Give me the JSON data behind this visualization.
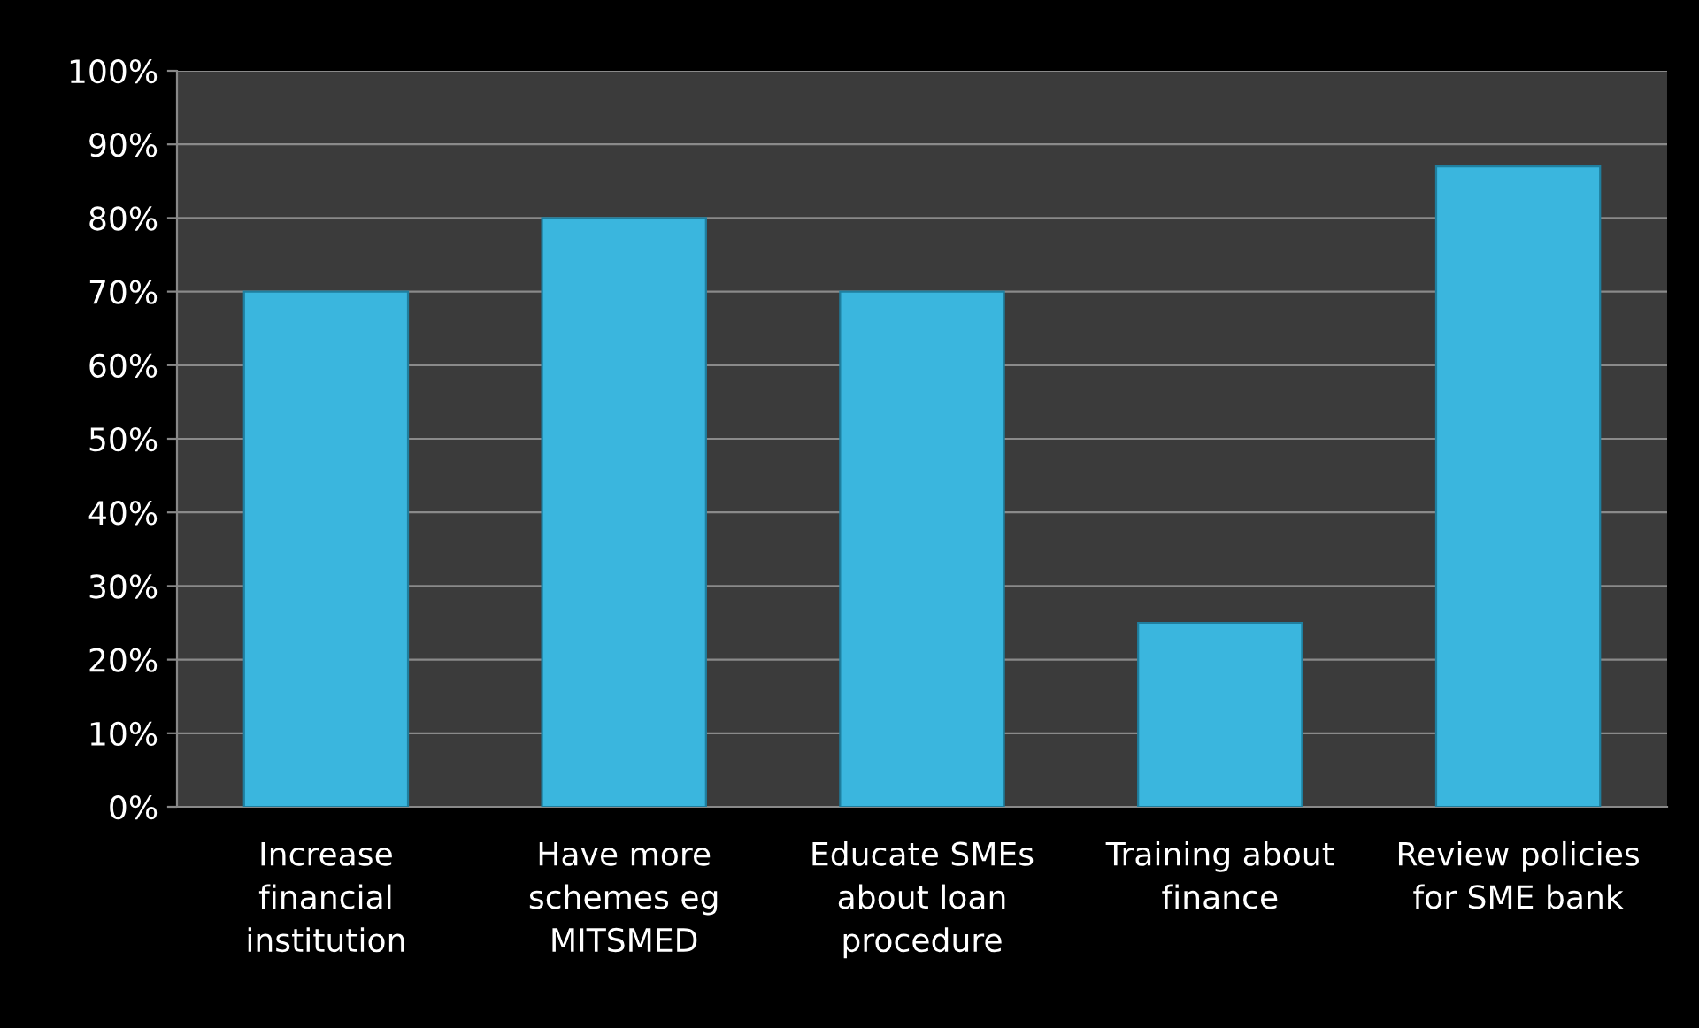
{
  "chart_data": {
    "type": "bar",
    "categories": [
      "Increase\nfinancial\ninstitution",
      "Have more\nschemes eg\nMITSMED",
      "Educate SMEs\nabout loan\nprocedure",
      "Training about\nfinance",
      "Review policies\nfor SME bank"
    ],
    "values": [
      70,
      80,
      70,
      25,
      87
    ],
    "color": "#3ab6de",
    "ylim": [
      0,
      100
    ],
    "yticks": [
      {
        "value": 0,
        "label": "0%"
      },
      {
        "value": 10,
        "label": "10%"
      },
      {
        "value": 20,
        "label": "20%"
      },
      {
        "value": 30,
        "label": "30%"
      },
      {
        "value": 40,
        "label": "40%"
      },
      {
        "value": 50,
        "label": "50%"
      },
      {
        "value": 60,
        "label": "60%"
      },
      {
        "value": 70,
        "label": "70%"
      },
      {
        "value": 80,
        "label": "80%"
      },
      {
        "value": 90,
        "label": "90%"
      },
      {
        "value": 100,
        "label": "100%"
      }
    ],
    "grid": "y",
    "legend": false
  }
}
